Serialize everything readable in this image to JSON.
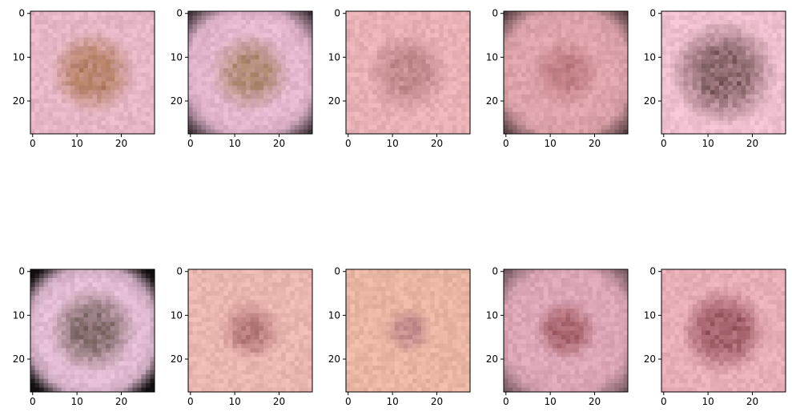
{
  "figure": {
    "rows": 2,
    "cols": 5,
    "image_size": 28,
    "x_ticks": [
      "0",
      "10",
      "20"
    ],
    "y_ticks": [
      "0",
      "10",
      "20"
    ]
  },
  "panels": [
    {
      "name": "panel-1",
      "skin": "#e7b6c6",
      "lesion": "#b9856e",
      "lesion_r": 0.35,
      "vignette": 0.05,
      "dark_corners": false
    },
    {
      "name": "panel-2",
      "skin": "#e5b7cf",
      "lesion": "#b48d7a",
      "lesion_r": 0.33,
      "vignette": 0.55,
      "dark_corners": true
    },
    {
      "name": "panel-3",
      "skin": "#e7b1b6",
      "lesion": "#c48b8f",
      "lesion_r": 0.34,
      "vignette": 0.05,
      "dark_corners": false
    },
    {
      "name": "panel-4",
      "skin": "#dfa4ab",
      "lesion": "#c17f86",
      "lesion_r": 0.28,
      "vignette": 0.45,
      "dark_corners": true
    },
    {
      "name": "panel-5",
      "skin": "#efbfcf",
      "lesion": "#8e6a6f",
      "lesion_r": 0.44,
      "vignette": 0.2,
      "dark_corners": false
    },
    {
      "name": "panel-6",
      "skin": "#e3bcd3",
      "lesion": "#8d7476",
      "lesion_r": 0.36,
      "vignette": 0.9,
      "dark_corners": true
    },
    {
      "name": "panel-7",
      "skin": "#eab6b0",
      "lesion": "#b87c7e",
      "lesion_r": 0.25,
      "vignette": 0.05,
      "dark_corners": false
    },
    {
      "name": "panel-8",
      "skin": "#e8b6a3",
      "lesion": "#c68f8e",
      "lesion_r": 0.2,
      "vignette": 0.15,
      "dark_corners": false
    },
    {
      "name": "panel-9",
      "skin": "#dea7b7",
      "lesion": "#a7636c",
      "lesion_r": 0.25,
      "vignette": 0.35,
      "dark_corners": true
    },
    {
      "name": "panel-10",
      "skin": "#e8aeb6",
      "lesion": "#9f5d66",
      "lesion_r": 0.36,
      "vignette": 0.05,
      "dark_corners": false
    }
  ]
}
